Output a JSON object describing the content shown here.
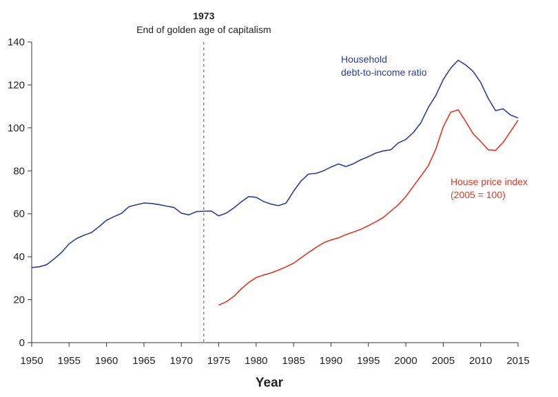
{
  "chart_data": {
    "type": "line",
    "title": "",
    "xlabel": "Year",
    "ylabel": "",
    "xlim": [
      1950,
      2015
    ],
    "ylim": [
      0,
      140
    ],
    "x_ticks": [
      "1950",
      "1955",
      "1960",
      "1965",
      "1970",
      "1975",
      "1980",
      "1985",
      "1990",
      "1995",
      "2000",
      "2005",
      "2010",
      "2015"
    ],
    "y_ticks": [
      "0",
      "20",
      "40",
      "60",
      "80",
      "100",
      "120",
      "140"
    ],
    "grid": false,
    "annotation": {
      "x": 1973,
      "title": "1973",
      "text": "End of golden age of capitalism"
    },
    "series": [
      {
        "name_lines": [
          "Household",
          "debt-to-income ratio"
        ],
        "color": "#2b3a9b",
        "x": [
          1950,
          1951,
          1952,
          1953,
          1954,
          1955,
          1956,
          1957,
          1958,
          1959,
          1960,
          1961,
          1962,
          1963,
          1964,
          1965,
          1966,
          1967,
          1968,
          1969,
          1970,
          1971,
          1972,
          1973,
          1974,
          1975,
          1976,
          1977,
          1978,
          1979,
          1980,
          1981,
          1982,
          1983,
          1984,
          1985,
          1986,
          1987,
          1988,
          1989,
          1990,
          1991,
          1992,
          1993,
          1994,
          1995,
          1996,
          1997,
          1998,
          1999,
          2000,
          2001,
          2002,
          2003,
          2004,
          2005,
          2006,
          2007,
          2008,
          2009,
          2010,
          2011,
          2012,
          2013,
          2014,
          2015
        ],
        "y": [
          35,
          35.3,
          36.3,
          39,
          42,
          46,
          48.5,
          50,
          51.3,
          54,
          57,
          58.7,
          60.2,
          63.3,
          64.2,
          65,
          64.8,
          64.3,
          63.6,
          63,
          60.3,
          59.5,
          61,
          61.2,
          61.3,
          59,
          60.3,
          62.7,
          65.5,
          68,
          67.7,
          65.7,
          64.5,
          63.8,
          65,
          70.5,
          75.3,
          78.5,
          78.8,
          80,
          81.8,
          83.2,
          82,
          83.3,
          85.2,
          86.6,
          88.3,
          89.3,
          89.8,
          93,
          94.6,
          97.8,
          102.3,
          109.5,
          115,
          122.5,
          127.8,
          131.5,
          129.3,
          126.3,
          121.2,
          113.8,
          108,
          108.9,
          106,
          104.6
        ]
      },
      {
        "name_lines": [
          "House price index",
          "(2005 = 100)"
        ],
        "color": "#e8321e",
        "x": [
          1975,
          1976,
          1977,
          1978,
          1979,
          1980,
          1981,
          1982,
          1983,
          1984,
          1985,
          1986,
          1987,
          1988,
          1989,
          1990,
          1991,
          1992,
          1993,
          1994,
          1995,
          1996,
          1997,
          1998,
          1999,
          2000,
          2001,
          2002,
          2003,
          2004,
          2005,
          2006,
          2007,
          2008,
          2009,
          2010,
          2011,
          2012,
          2013,
          2014,
          2015
        ],
        "y": [
          17.5,
          19,
          21.5,
          25,
          28,
          30.3,
          31.5,
          32.5,
          33.8,
          35.3,
          37,
          39.5,
          42,
          44.3,
          46.5,
          47.8,
          48.8,
          50.3,
          51.5,
          52.8,
          54.5,
          56.3,
          58.3,
          61.3,
          64.2,
          68,
          72.8,
          77.5,
          82.3,
          90,
          100.5,
          107.3,
          108.4,
          103,
          97.3,
          93.7,
          89.8,
          89.5,
          93.2,
          98.3,
          103.6
        ]
      }
    ]
  }
}
